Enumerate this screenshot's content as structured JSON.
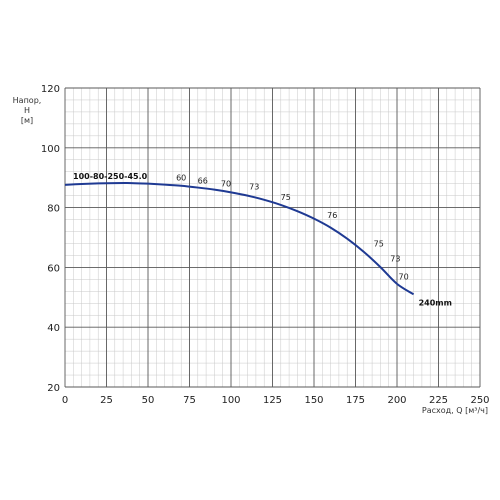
{
  "chart_data": {
    "type": "line",
    "ylabel_lines": [
      "Напор,",
      "Н",
      "[м]"
    ],
    "xlabel": "Расход, Q [м³/ч]",
    "xlim": [
      0,
      250
    ],
    "ylim": [
      20,
      120
    ],
    "x_ticks": [
      0,
      25,
      50,
      75,
      100,
      125,
      150,
      175,
      200,
      225,
      250
    ],
    "y_ticks": [
      20,
      40,
      60,
      80,
      100,
      120
    ],
    "grid": true,
    "series": [
      {
        "name": "100-80-250-45.0",
        "end_label": "240mm",
        "color": "#1f3a93",
        "x": [
          0,
          10,
          20,
          30,
          40,
          50,
          60,
          70,
          80,
          90,
          100,
          110,
          120,
          130,
          140,
          150,
          160,
          170,
          180,
          190,
          200,
          210
        ],
        "y": [
          87.6,
          87.9,
          88.1,
          88.2,
          88.2,
          88.0,
          87.7,
          87.3,
          86.7,
          86.0,
          85.1,
          84.0,
          82.6,
          80.9,
          78.8,
          76.3,
          73.3,
          69.6,
          65.2,
          60.1,
          54.5,
          51.0
        ]
      }
    ],
    "efficiency_labels": [
      {
        "label": "60",
        "x": 70,
        "y": 89
      },
      {
        "label": "66",
        "x": 83,
        "y": 88
      },
      {
        "label": "70",
        "x": 97,
        "y": 87
      },
      {
        "label": "73",
        "x": 114,
        "y": 86
      },
      {
        "label": "75",
        "x": 133,
        "y": 82.5
      },
      {
        "label": "76",
        "x": 161,
        "y": 76.5
      },
      {
        "label": "75",
        "x": 189,
        "y": 67
      },
      {
        "label": "73",
        "x": 199,
        "y": 62
      },
      {
        "label": "70",
        "x": 204,
        "y": 56
      }
    ]
  }
}
